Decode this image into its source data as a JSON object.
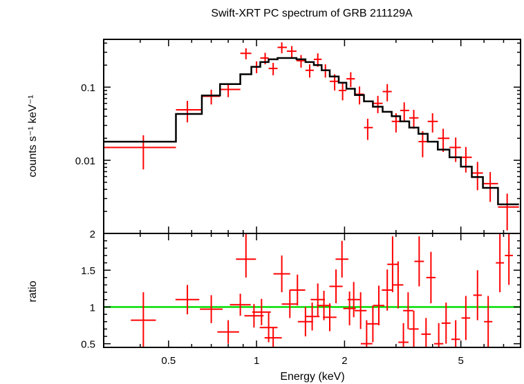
{
  "chart_data": [
    {
      "type": "scatter",
      "title": "Swift-XRT PC spectrum of GRB 211129A",
      "ylabel": "counts s⁻¹ keV⁻¹",
      "xlabel": "",
      "xscale": "log",
      "yscale": "log",
      "xlim": [
        0.3,
        8.0
      ],
      "ylim": [
        0.001,
        0.45
      ],
      "x_ticks": [
        {
          "v": 0.5,
          "label": ""
        },
        {
          "v": 1,
          "label": ""
        },
        {
          "v": 2,
          "label": ""
        },
        {
          "v": 5,
          "label": ""
        }
      ],
      "y_ticks": [
        {
          "v": 0.1,
          "label": "0.1"
        },
        {
          "v": 0.01,
          "label": "0.01"
        }
      ],
      "series": [
        {
          "name": "",
          "kind": "data",
          "color": "#ff0000",
          "x": [
            0.41,
            0.58,
            0.7,
            0.8,
            0.92,
            1.0,
            1.07,
            1.14,
            1.22,
            1.32,
            1.42,
            1.52,
            1.62,
            1.72,
            1.85,
            1.97,
            2.1,
            2.25,
            2.4,
            2.6,
            2.8,
            3.0,
            3.2,
            3.45,
            3.7,
            4.0,
            4.35,
            4.8,
            5.2,
            5.7,
            6.3,
            7.2
          ],
          "y": [
            0.015,
            0.049,
            0.075,
            0.093,
            0.29,
            0.19,
            0.25,
            0.18,
            0.35,
            0.31,
            0.23,
            0.17,
            0.24,
            0.17,
            0.12,
            0.09,
            0.13,
            0.08,
            0.028,
            0.06,
            0.087,
            0.034,
            0.048,
            0.038,
            0.018,
            0.034,
            0.02,
            0.015,
            0.011,
            0.0067,
            0.0048,
            0.0023
          ],
          "x_lo": [
            0.3,
            0.53,
            0.65,
            0.75,
            0.88,
            0.96,
            1.03,
            1.1,
            1.18,
            1.27,
            1.37,
            1.47,
            1.57,
            1.67,
            1.78,
            1.91,
            2.03,
            2.17,
            2.33,
            2.5,
            2.7,
            2.9,
            3.1,
            3.33,
            3.58,
            3.85,
            4.17,
            4.57,
            5.0,
            5.45,
            5.95,
            6.7
          ],
          "x_hi": [
            0.53,
            0.65,
            0.75,
            0.88,
            0.96,
            1.03,
            1.1,
            1.18,
            1.27,
            1.37,
            1.47,
            1.57,
            1.67,
            1.78,
            1.91,
            2.03,
            2.17,
            2.33,
            2.5,
            2.7,
            2.9,
            3.1,
            3.33,
            3.58,
            3.85,
            4.17,
            4.57,
            5.0,
            5.45,
            5.95,
            6.7,
            7.9
          ],
          "y_lo": [
            0.0075,
            0.033,
            0.058,
            0.073,
            0.24,
            0.155,
            0.205,
            0.145,
            0.29,
            0.255,
            0.185,
            0.135,
            0.19,
            0.135,
            0.09,
            0.066,
            0.1,
            0.058,
            0.019,
            0.044,
            0.064,
            0.024,
            0.034,
            0.027,
            0.011,
            0.024,
            0.013,
            0.0095,
            0.0068,
            0.0039,
            0.0027,
            0.0011
          ],
          "y_hi": [
            0.022,
            0.065,
            0.092,
            0.113,
            0.34,
            0.225,
            0.295,
            0.215,
            0.41,
            0.365,
            0.275,
            0.205,
            0.29,
            0.205,
            0.15,
            0.114,
            0.16,
            0.102,
            0.037,
            0.076,
            0.11,
            0.044,
            0.062,
            0.049,
            0.025,
            0.044,
            0.027,
            0.0205,
            0.0152,
            0.0095,
            0.0069,
            0.0035
          ]
        },
        {
          "name": "",
          "kind": "model_step",
          "color": "#000000",
          "edges": [
            0.3,
            0.53,
            0.65,
            0.75,
            0.88,
            0.96,
            1.03,
            1.1,
            1.18,
            1.27,
            1.37,
            1.47,
            1.57,
            1.67,
            1.78,
            1.91,
            2.03,
            2.17,
            2.33,
            2.5,
            2.7,
            2.9,
            3.1,
            3.33,
            3.58,
            3.85,
            4.17,
            4.57,
            5.0,
            5.45,
            5.95,
            6.7,
            7.9
          ],
          "values": [
            0.018,
            0.043,
            0.077,
            0.11,
            0.15,
            0.19,
            0.22,
            0.24,
            0.25,
            0.25,
            0.24,
            0.22,
            0.2,
            0.17,
            0.14,
            0.115,
            0.095,
            0.078,
            0.064,
            0.054,
            0.046,
            0.04,
            0.034,
            0.028,
            0.023,
            0.018,
            0.014,
            0.011,
            0.0082,
            0.0059,
            0.0042,
            0.0025
          ]
        }
      ]
    },
    {
      "type": "scatter",
      "title": "",
      "xlabel": "Energy (keV)",
      "ylabel": "ratio",
      "xscale": "log",
      "xlim": [
        0.3,
        8.0
      ],
      "ylim": [
        0.45,
        2.0
      ],
      "x_ticks": [
        {
          "v": 0.5,
          "label": "0.5"
        },
        {
          "v": 1,
          "label": "1"
        },
        {
          "v": 2,
          "label": "2"
        },
        {
          "v": 5,
          "label": "5"
        }
      ],
      "y_ticks": [
        {
          "v": 0.5,
          "label": "0.5"
        },
        {
          "v": 1,
          "label": "1"
        },
        {
          "v": 1.5,
          "label": "1.5"
        },
        {
          "v": 2,
          "label": "2"
        }
      ],
      "reference_line": {
        "y": 1.0,
        "color": "#00dd00"
      },
      "series": [
        {
          "name": "",
          "kind": "data",
          "color": "#ff0000",
          "x": [
            0.41,
            0.58,
            0.7,
            0.8,
            0.88,
            0.92,
            0.98,
            1.04,
            1.1,
            1.14,
            1.22,
            1.3,
            1.38,
            1.47,
            1.55,
            1.62,
            1.7,
            1.78,
            1.87,
            1.96,
            2.08,
            2.15,
            2.27,
            2.38,
            2.5,
            2.62,
            2.8,
            2.92,
            3.05,
            3.18,
            3.3,
            3.45,
            3.6,
            3.8,
            3.95,
            4.2,
            4.45,
            4.8,
            5.2,
            5.7,
            6.2,
            6.8,
            7.3
          ],
          "y": [
            0.82,
            1.1,
            0.97,
            0.66,
            1.03,
            1.65,
            0.88,
            0.93,
            0.72,
            0.58,
            1.45,
            1.04,
            1.23,
            0.8,
            0.87,
            1.1,
            1.02,
            0.86,
            1.28,
            1.65,
            0.98,
            1.1,
            0.95,
            0.5,
            0.77,
            1.02,
            1.23,
            1.58,
            1.3,
            0.52,
            0.95,
            0.7,
            1.62,
            0.63,
            1.4,
            0.5,
            0.78,
            0.56,
            0.85,
            1.16,
            0.8,
            1.6,
            1.7
          ],
          "y_lo": [
            0.45,
            0.9,
            0.78,
            0.5,
            0.88,
            1.4,
            0.72,
            0.75,
            0.52,
            0.45,
            1.2,
            0.85,
            1.02,
            0.6,
            0.68,
            0.88,
            0.82,
            0.67,
            1.05,
            1.4,
            0.75,
            0.86,
            0.7,
            0.45,
            0.52,
            0.75,
            0.95,
            1.2,
            0.98,
            0.45,
            0.7,
            0.45,
            1.28,
            0.45,
            1.05,
            0.45,
            0.5,
            0.45,
            0.55,
            0.82,
            0.45,
            1.2,
            1.3
          ],
          "y_hi": [
            1.2,
            1.3,
            1.16,
            0.82,
            1.18,
            2.0,
            1.04,
            1.11,
            0.92,
            0.72,
            1.7,
            1.23,
            1.44,
            1.0,
            1.06,
            1.32,
            1.22,
            1.05,
            1.51,
            1.9,
            1.21,
            1.34,
            1.2,
            0.82,
            1.02,
            1.29,
            1.51,
            1.96,
            1.62,
            0.78,
            1.2,
            0.95,
            1.96,
            0.85,
            1.75,
            0.78,
            1.06,
            0.82,
            1.15,
            1.5,
            1.15,
            2.0,
            2.0
          ]
        }
      ]
    }
  ]
}
